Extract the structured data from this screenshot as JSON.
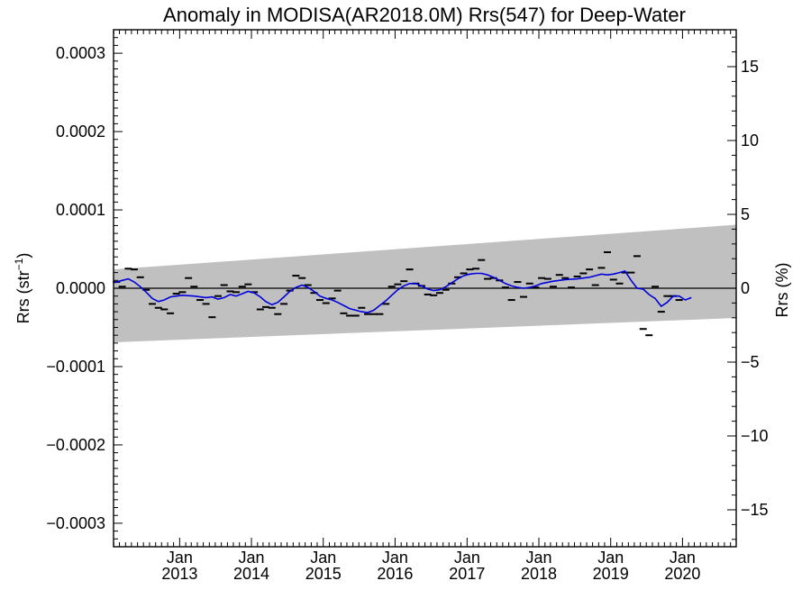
{
  "chart_data": {
    "type": "line",
    "title": "Anomaly in MODISA(AR2018.0M) Rrs(547) for Deep-Water",
    "ylabel_left": "Rrs (str",
    "ylabel_left_exp": "−1",
    "ylabel_left_close": ")",
    "ylabel_right": "Rrs (%)",
    "xlim": [
      "2012-01-31",
      "2020-09-30"
    ],
    "ylim": [
      -0.00033,
      0.00033
    ],
    "right_ylim": [
      -17.5,
      17.5
    ],
    "grid": false,
    "zero_line": true,
    "x_major_ticks": [
      {
        "date": "2013-01-01",
        "month": "Jan",
        "year": "2013"
      },
      {
        "date": "2014-01-01",
        "month": "Jan",
        "year": "2014"
      },
      {
        "date": "2015-01-01",
        "month": "Jan",
        "year": "2015"
      },
      {
        "date": "2016-01-01",
        "month": "Jan",
        "year": "2016"
      },
      {
        "date": "2017-01-01",
        "month": "Jan",
        "year": "2017"
      },
      {
        "date": "2018-01-01",
        "month": "Jan",
        "year": "2018"
      },
      {
        "date": "2019-01-01",
        "month": "Jan",
        "year": "2019"
      },
      {
        "date": "2020-01-01",
        "month": "Jan",
        "year": "2020"
      }
    ],
    "left_ticks": [
      {
        "value": 0.0003,
        "label": "0.0003"
      },
      {
        "value": 0.0002,
        "label": "0.0002"
      },
      {
        "value": 0.0001,
        "label": "0.0001"
      },
      {
        "value": 0.0,
        "label": "0.0000"
      },
      {
        "value": -0.0001,
        "label": "−0.0001"
      },
      {
        "value": -0.0002,
        "label": "−0.0002"
      },
      {
        "value": -0.0003,
        "label": "−0.0003"
      }
    ],
    "right_ticks": [
      {
        "value": 15,
        "label": "15"
      },
      {
        "value": 10,
        "label": "10"
      },
      {
        "value": 5,
        "label": "5"
      },
      {
        "value": 0,
        "label": "0"
      },
      {
        "value": -5,
        "label": "−5"
      },
      {
        "value": -10,
        "label": "−10"
      },
      {
        "value": -15,
        "label": "−15"
      }
    ],
    "band": {
      "color": "#c0c0c0",
      "x": [
        "2012-01-31",
        "2020-09-30"
      ],
      "upper": [
        2.4e-05,
        8.1e-05
      ],
      "lower": [
        -6.9e-05,
        -3.8e-05
      ]
    },
    "series": [
      {
        "style": "dash-markers",
        "color": "#000000",
        "points": [
          [
            "2012-02-15",
            8e-06
          ],
          [
            "2012-03-15",
            2e-06
          ],
          [
            "2012-04-15",
            2.5e-05
          ],
          [
            "2012-05-15",
            2.4e-05
          ],
          [
            "2012-06-15",
            1.4e-05
          ],
          [
            "2012-07-15",
            -2e-06
          ],
          [
            "2012-08-15",
            -2e-05
          ],
          [
            "2012-09-15",
            -2.5e-05
          ],
          [
            "2012-10-15",
            -2.7e-05
          ],
          [
            "2012-11-15",
            -3.2e-05
          ],
          [
            "2012-12-15",
            -7e-06
          ],
          [
            "2013-01-15",
            -5e-06
          ],
          [
            "2013-02-15",
            1.3e-05
          ],
          [
            "2013-03-15",
            2e-06
          ],
          [
            "2013-04-15",
            -1.5e-05
          ],
          [
            "2013-05-15",
            -2e-05
          ],
          [
            "2013-06-15",
            -3.7e-05
          ],
          [
            "2013-07-15",
            -1e-05
          ],
          [
            "2013-08-15",
            4e-06
          ],
          [
            "2013-09-15",
            -4e-06
          ],
          [
            "2013-10-15",
            -5e-06
          ],
          [
            "2013-11-15",
            2e-06
          ],
          [
            "2013-12-15",
            5e-06
          ],
          [
            "2014-01-15",
            -5e-06
          ],
          [
            "2014-02-15",
            -2.7e-05
          ],
          [
            "2014-03-15",
            -2.4e-05
          ],
          [
            "2014-04-15",
            -2.5e-05
          ],
          [
            "2014-05-15",
            -3.3e-05
          ],
          [
            "2014-06-15",
            -2e-05
          ],
          [
            "2014-07-15",
            -3e-06
          ],
          [
            "2014-08-15",
            1.6e-05
          ],
          [
            "2014-09-15",
            1.3e-05
          ],
          [
            "2014-10-15",
            4e-06
          ],
          [
            "2014-11-15",
            -6e-06
          ],
          [
            "2014-12-15",
            -1.5e-05
          ],
          [
            "2015-01-15",
            -1.9e-05
          ],
          [
            "2015-02-15",
            -1.3e-05
          ],
          [
            "2015-03-15",
            -3e-06
          ],
          [
            "2015-04-15",
            -3.2e-05
          ],
          [
            "2015-05-15",
            -3.5e-05
          ],
          [
            "2015-06-15",
            -3.5e-05
          ],
          [
            "2015-07-15",
            -2.5e-05
          ],
          [
            "2015-08-15",
            -3.3e-05
          ],
          [
            "2015-09-15",
            -3.3e-05
          ],
          [
            "2015-10-15",
            -3.3e-05
          ],
          [
            "2015-11-15",
            -2e-05
          ],
          [
            "2015-12-15",
            2e-06
          ],
          [
            "2016-01-15",
            5e-06
          ],
          [
            "2016-02-15",
            9e-06
          ],
          [
            "2016-03-15",
            2.4e-05
          ],
          [
            "2016-04-15",
            6e-06
          ],
          [
            "2016-05-15",
            3e-06
          ],
          [
            "2016-06-15",
            -8e-06
          ],
          [
            "2016-07-15",
            -9e-06
          ],
          [
            "2016-08-15",
            -6e-06
          ],
          [
            "2016-09-15",
            -2e-06
          ],
          [
            "2016-10-15",
            6e-06
          ],
          [
            "2016-11-15",
            1.4e-05
          ],
          [
            "2016-12-15",
            1.9e-05
          ],
          [
            "2017-01-15",
            2.4e-05
          ],
          [
            "2017-02-15",
            2.5e-05
          ],
          [
            "2017-03-15",
            3.6e-05
          ],
          [
            "2017-04-15",
            1.2e-05
          ],
          [
            "2017-05-15",
            1.3e-05
          ],
          [
            "2017-06-15",
            1e-05
          ],
          [
            "2017-07-15",
            1e-06
          ],
          [
            "2017-08-15",
            -1.5e-05
          ],
          [
            "2017-09-15",
            8e-06
          ],
          [
            "2017-10-15",
            -1.1e-05
          ],
          [
            "2017-11-15",
            6e-06
          ],
          [
            "2017-12-15",
            1e-06
          ],
          [
            "2018-01-15",
            1.3e-05
          ],
          [
            "2018-02-15",
            1.2e-05
          ],
          [
            "2018-03-15",
            2e-06
          ],
          [
            "2018-04-15",
            1.7e-05
          ],
          [
            "2018-05-15",
            1.3e-05
          ],
          [
            "2018-06-15",
            1e-06
          ],
          [
            "2018-07-15",
            1.5e-05
          ],
          [
            "2018-08-15",
            1.9e-05
          ],
          [
            "2018-09-15",
            2.4e-05
          ],
          [
            "2018-10-15",
            4e-06
          ],
          [
            "2018-11-15",
            2.6e-05
          ],
          [
            "2018-12-15",
            4.6e-05
          ],
          [
            "2019-01-15",
            1.1e-05
          ],
          [
            "2019-02-15",
            6e-06
          ],
          [
            "2019-03-15",
            2e-05
          ],
          [
            "2019-04-15",
            2e-05
          ],
          [
            "2019-05-15",
            4.1e-05
          ],
          [
            "2019-06-15",
            -5.2e-05
          ],
          [
            "2019-07-15",
            -6e-05
          ],
          [
            "2019-08-15",
            2e-06
          ],
          [
            "2019-09-15",
            -3e-05
          ],
          [
            "2019-10-15",
            -1e-05
          ],
          [
            "2019-11-15",
            -1e-05
          ],
          [
            "2019-12-15",
            -1.5e-05
          ]
        ]
      },
      {
        "style": "line",
        "color": "#0000dd",
        "points": [
          [
            "2012-01-31",
            7e-06
          ],
          [
            "2012-03-15",
            1e-05
          ],
          [
            "2012-04-15",
            1.2e-05
          ],
          [
            "2012-05-15",
            8e-06
          ],
          [
            "2012-06-15",
            2e-06
          ],
          [
            "2012-07-15",
            -5e-06
          ],
          [
            "2012-08-15",
            -1.3e-05
          ],
          [
            "2012-09-15",
            -1.7e-05
          ],
          [
            "2012-10-15",
            -1.5e-05
          ],
          [
            "2012-11-15",
            -1.1e-05
          ],
          [
            "2012-12-15",
            -1e-05
          ],
          [
            "2013-01-15",
            -9e-06
          ],
          [
            "2013-03-15",
            -1e-05
          ],
          [
            "2013-05-15",
            -1.2e-05
          ],
          [
            "2013-06-15",
            -1.1e-05
          ],
          [
            "2013-07-15",
            -1.4e-05
          ],
          [
            "2013-08-15",
            -1.2e-05
          ],
          [
            "2013-09-15",
            -8e-06
          ],
          [
            "2013-10-15",
            -1e-05
          ],
          [
            "2013-11-15",
            -7e-06
          ],
          [
            "2013-12-15",
            -4e-06
          ],
          [
            "2014-01-15",
            -6e-06
          ],
          [
            "2014-02-15",
            -1.1e-05
          ],
          [
            "2014-03-15",
            -1.7e-05
          ],
          [
            "2014-04-15",
            -2.1e-05
          ],
          [
            "2014-05-15",
            -1.8e-05
          ],
          [
            "2014-06-15",
            -1.1e-05
          ],
          [
            "2014-07-15",
            -4e-06
          ],
          [
            "2014-08-15",
            1e-06
          ],
          [
            "2014-09-15",
            4e-06
          ],
          [
            "2014-10-15",
            1e-06
          ],
          [
            "2014-11-15",
            -4e-06
          ],
          [
            "2014-12-15",
            -1e-05
          ],
          [
            "2015-01-15",
            -1.3e-05
          ],
          [
            "2015-02-15",
            -1.5e-05
          ],
          [
            "2015-03-15",
            -1.8e-05
          ],
          [
            "2015-04-15",
            -2.2e-05
          ],
          [
            "2015-05-15",
            -2.6e-05
          ],
          [
            "2015-06-15",
            -2.8e-05
          ],
          [
            "2015-07-15",
            -3e-05
          ],
          [
            "2015-08-15",
            -3.1e-05
          ],
          [
            "2015-09-15",
            -2.8e-05
          ],
          [
            "2015-10-15",
            -2.2e-05
          ],
          [
            "2015-11-15",
            -1.6e-05
          ],
          [
            "2015-12-15",
            -9e-06
          ],
          [
            "2016-01-15",
            -2e-06
          ],
          [
            "2016-02-15",
            3e-06
          ],
          [
            "2016-03-15",
            6e-06
          ],
          [
            "2016-04-15",
            6e-06
          ],
          [
            "2016-05-15",
            3e-06
          ],
          [
            "2016-06-15",
            -1e-06
          ],
          [
            "2016-07-15",
            -3e-06
          ],
          [
            "2016-08-15",
            -2e-06
          ],
          [
            "2016-09-15",
            2e-06
          ],
          [
            "2016-10-15",
            7e-06
          ],
          [
            "2016-11-15",
            1.2e-05
          ],
          [
            "2016-12-15",
            1.6e-05
          ],
          [
            "2017-01-15",
            1.8e-05
          ],
          [
            "2017-02-15",
            1.9e-05
          ],
          [
            "2017-03-15",
            1.9e-05
          ],
          [
            "2017-04-15",
            1.7e-05
          ],
          [
            "2017-05-15",
            1.4e-05
          ],
          [
            "2017-06-15",
            1e-05
          ],
          [
            "2017-07-15",
            6e-06
          ],
          [
            "2017-08-15",
            3e-06
          ],
          [
            "2017-09-15",
            1e-06
          ],
          [
            "2017-10-15",
            0.0
          ],
          [
            "2017-11-15",
            1e-06
          ],
          [
            "2017-12-15",
            3e-06
          ],
          [
            "2018-01-15",
            6e-06
          ],
          [
            "2018-03-15",
            9e-06
          ],
          [
            "2018-05-15",
            1.1e-05
          ],
          [
            "2018-07-15",
            1.2e-05
          ],
          [
            "2018-09-15",
            1.4e-05
          ],
          [
            "2018-10-15",
            1.6e-05
          ],
          [
            "2018-11-15",
            1.8e-05
          ],
          [
            "2018-12-15",
            1.7e-05
          ],
          [
            "2019-01-15",
            1.8e-05
          ],
          [
            "2019-02-15",
            2e-05
          ],
          [
            "2019-03-15",
            2.2e-05
          ],
          [
            "2019-04-15",
            1e-05
          ],
          [
            "2019-05-15",
            0.0
          ],
          [
            "2019-06-15",
            -1e-06
          ],
          [
            "2019-07-15",
            -8e-06
          ],
          [
            "2019-08-15",
            -1.3e-05
          ],
          [
            "2019-09-15",
            -2.3e-05
          ],
          [
            "2019-10-15",
            -1.8e-05
          ],
          [
            "2019-11-15",
            -1e-05
          ],
          [
            "2019-12-15",
            -1e-05
          ],
          [
            "2020-01-15",
            -1.5e-05
          ],
          [
            "2020-02-15",
            -1.2e-05
          ]
        ]
      }
    ]
  }
}
